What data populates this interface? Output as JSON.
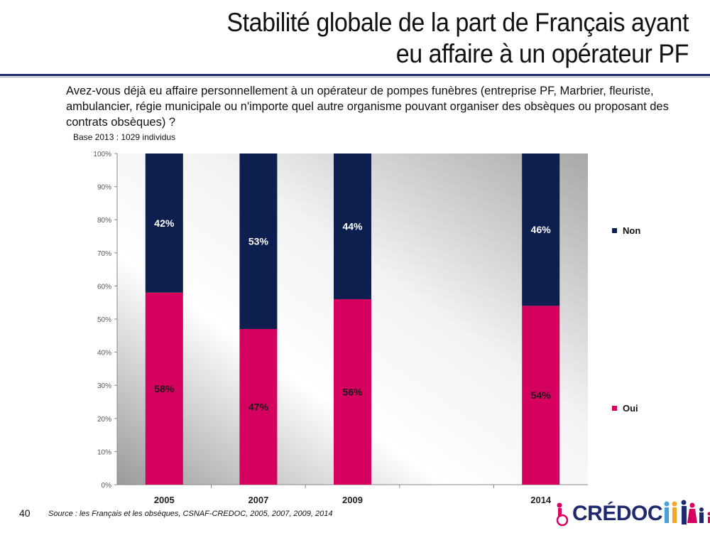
{
  "slide": {
    "title_line1": "Stabilité globale de la part de Français ayant",
    "title_line2": "eu affaire à un opérateur PF",
    "question": "Avez-vous déjà eu affaire personnellement à un opérateur de pompes funèbres (entreprise PF, Marbrier, fleuriste, ambulancier, régie municipale ou n'importe quel autre organisme pouvant organiser des obsèques ou proposant des contrats obsèques) ?",
    "base": "Base 2013 : 1029 individus",
    "source": "Source : les Français et les obsèques, CSNAF-CREDOC, 2005, 2007, 2009, 2014",
    "page_number": "40",
    "logo_text": "CRÉDOC"
  },
  "chart_data": {
    "type": "bar",
    "stacked": true,
    "categories": [
      "2005",
      "2007",
      "2009",
      "",
      "2014"
    ],
    "series": [
      {
        "name": "Oui",
        "values": [
          58,
          47,
          56,
          null,
          54
        ],
        "labels": [
          "58%",
          "47%",
          "56%",
          "",
          "54%"
        ],
        "color": "#d6005f"
      },
      {
        "name": "Non",
        "values": [
          42,
          53,
          44,
          null,
          46
        ],
        "labels": [
          "42%",
          "53%",
          "44%",
          "",
          "46%"
        ],
        "color": "#0d1f4f"
      }
    ],
    "yticks": [
      "0%",
      "10%",
      "20%",
      "30%",
      "40%",
      "50%",
      "60%",
      "70%",
      "80%",
      "90%",
      "100%"
    ],
    "ylim": [
      0,
      100
    ],
    "legend_position": "right",
    "grid": false
  }
}
